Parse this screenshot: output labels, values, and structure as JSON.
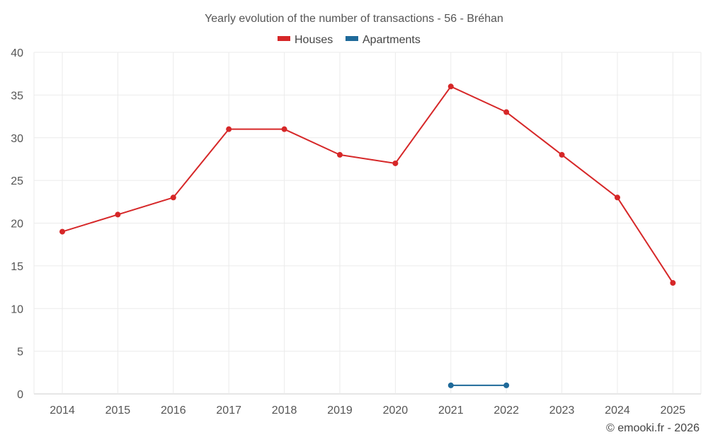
{
  "chart_data": {
    "type": "line",
    "title": "Yearly evolution of the number of transactions - 56 - Bréhan",
    "xlabel": "",
    "ylabel": "",
    "categories": [
      "2014",
      "2015",
      "2016",
      "2017",
      "2018",
      "2019",
      "2020",
      "2021",
      "2022",
      "2023",
      "2024",
      "2025"
    ],
    "ylim": [
      0,
      40
    ],
    "yticks": [
      0,
      5,
      10,
      15,
      20,
      25,
      30,
      35,
      40
    ],
    "grid": true,
    "legend_position": "top-center",
    "series": [
      {
        "name": "Houses",
        "color": "#d62728",
        "values": [
          19,
          21,
          23,
          31,
          31,
          28,
          27,
          36,
          33,
          28,
          23,
          13
        ]
      },
      {
        "name": "Apartments",
        "color": "#1f6a9a",
        "values": [
          null,
          null,
          null,
          null,
          null,
          null,
          null,
          1,
          1,
          null,
          null,
          null
        ]
      }
    ]
  },
  "credit": "© emooki.fr - 2026"
}
